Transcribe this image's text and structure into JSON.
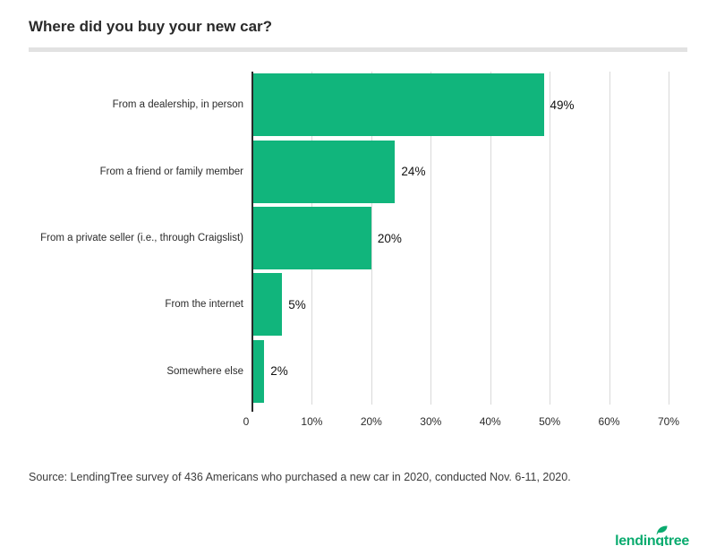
{
  "title": "Where did you buy your new car?",
  "source": "Source: LendingTree survey of 436 Americans who purchased a new car in 2020, conducted Nov. 6-11, 2020.",
  "logo": {
    "text": "lendingtree",
    "icon": "leaf-icon"
  },
  "colors": {
    "bar": "#11b57c",
    "brand": "#0aab6f",
    "axis": "#2a2a2a",
    "gridline": "#d9d9d9",
    "title_text": "#2a2a2a",
    "source_text": "#3c3c3c",
    "divider": "#e2e2e2"
  },
  "chart_data": {
    "type": "bar",
    "orientation": "horizontal",
    "title": "Where did you buy your new car?",
    "categories": [
      "From a dealership, in person",
      "From a friend or family member",
      "From a private seller (i.e., through Craigslist)",
      "From the internet",
      "Somewhere else"
    ],
    "values": [
      49,
      24,
      20,
      5,
      2
    ],
    "value_labels": [
      "49%",
      "24%",
      "20%",
      "5%",
      "2%"
    ],
    "xlim": [
      0,
      70
    ],
    "x_ticks": [
      "0",
      "10%",
      "20%",
      "30%",
      "40%",
      "50%",
      "60%",
      "70%"
    ],
    "grid": true,
    "legend": "none",
    "bar_color": "#11b57c"
  }
}
